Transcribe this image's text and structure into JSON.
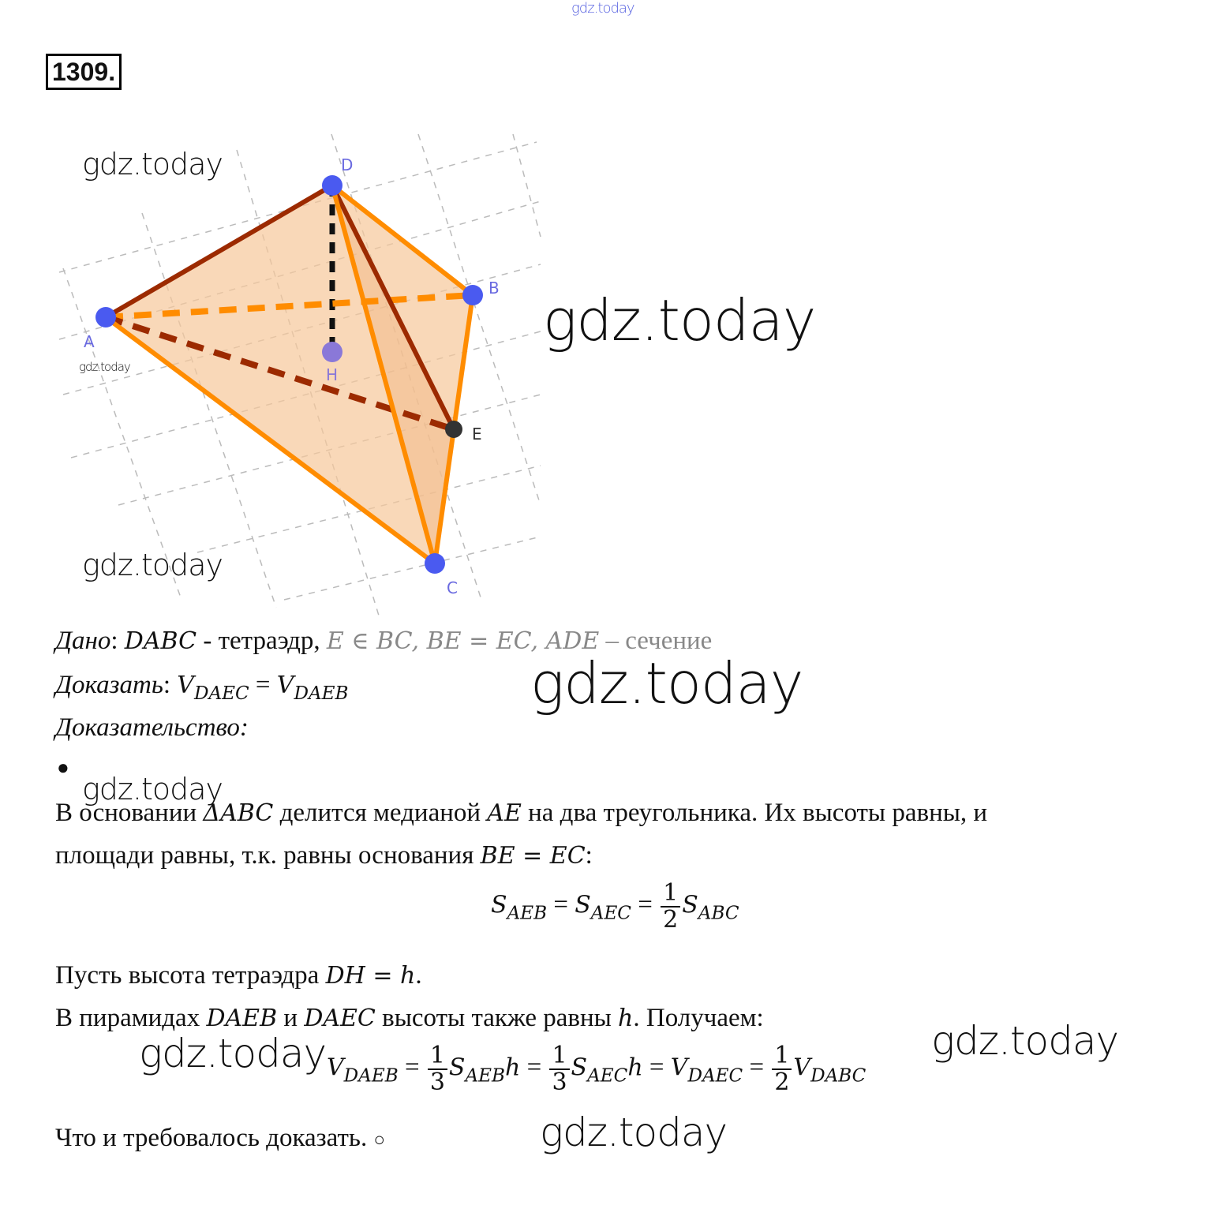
{
  "watermark": "gdz.today",
  "problem_number": "1309.",
  "figure": {
    "points": {
      "A": "A",
      "B": "B",
      "C": "C",
      "D": "D",
      "E": "E",
      "H": "H"
    },
    "colors": {
      "face": "#f7c89a",
      "edge_orange": "#ff8c00",
      "edge_dark": "#9c2a00",
      "point": "#4a5af0",
      "point_h": "#8a78d8",
      "point_e": "#333333",
      "grid": "#bbbbbb",
      "label": "#6a6ae0"
    }
  },
  "given": {
    "label": "Дано",
    "colon": ":",
    "shape": "DABC",
    "text1": " - тетраэдр, ",
    "conds": "E ∈ BC, BE = EC,  ADE",
    "text2": " – сечение"
  },
  "prove": {
    "label": "Доказать",
    "colon": ":",
    "lhs": "V",
    "lhs_sub": "DAEC",
    "eq": " = ",
    "rhs": "V",
    "rhs_sub": "DAEB"
  },
  "proof_label": "Доказательство:",
  "bullet": "●",
  "p1": {
    "t1": "В основании ",
    "m1": "ΔABC",
    "t2": " делится медианой ",
    "m2": "AE",
    "t3": " на два треугольника. Их высоты равны, и",
    "t4": "площади равны, т.к. равны основания ",
    "m3": "BE = EC",
    "t5": ":"
  },
  "formula1": {
    "s": "S",
    "sub1": "AEB",
    "eq": " = ",
    "sub2": "AEC",
    "num": "1",
    "den": "2",
    "sub3": "ABC"
  },
  "p2": {
    "t1": "Пусть высота тетраэдра ",
    "m1": "DH = h",
    "t2": "."
  },
  "p3": {
    "t1": "В пирамидах ",
    "m1": "DAEB",
    "t2": " и ",
    "m2": "DAEC",
    "t3": " высоты также равны ",
    "m3": "h",
    "t4": ". Получаем:"
  },
  "formula2": {
    "v": "V",
    "s": "S",
    "h": "h",
    "eq": " = ",
    "sub_daeb": "DAEB",
    "sub_aeb": "AEB",
    "sub_aec": "AEC",
    "sub_daec": "DAEC",
    "sub_dabc": "DABC",
    "third_num": "1",
    "third_den": "3",
    "half_num": "1",
    "half_den": "2"
  },
  "conclusion": {
    "text": "Что и требовалось доказать. ",
    "mark": "○"
  }
}
